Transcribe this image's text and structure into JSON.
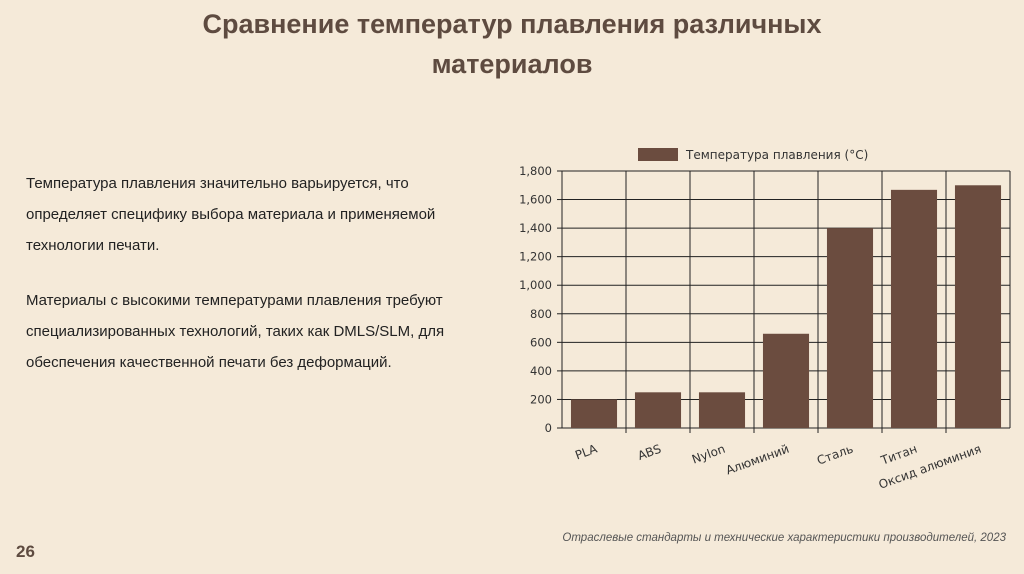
{
  "slide": {
    "title_line1": "Сравнение температур плавления различных",
    "title_line2": "материалов",
    "paragraph1": "Температура плавления значительно варьируется, что определяет специфику выбора материала и применяемой технологии печати.",
    "paragraph2": "Материалы с высокими температурами плавления требуют специализированных технологий, таких как DMLS/SLM, для обеспечения качественной печати без деформаций.",
    "source": "Отраслевые стандарты и технические характеристики производителей, 2023",
    "page_number": "26"
  },
  "colors": {
    "bar": "#6b4c3f",
    "title": "#5e4b40",
    "background": "#f5ead9"
  },
  "chart_data": {
    "type": "bar",
    "title": "",
    "xlabel": "",
    "ylabel": "",
    "categories": [
      "PLA",
      "ABS",
      "Nylon",
      "Алюминий",
      "Сталь",
      "Титан",
      "Оксид алюминия"
    ],
    "series": [
      {
        "name": "Температура плавления (°C)",
        "values": [
          200,
          250,
          250,
          660,
          1400,
          1668,
          1700
        ]
      }
    ],
    "ylim": [
      0,
      1800
    ],
    "yticks": [
      0,
      200,
      400,
      600,
      800,
      1000,
      1200,
      1400,
      1600,
      1800
    ],
    "ytick_labels": [
      "0",
      "200",
      "400",
      "600",
      "800",
      "1,000",
      "1,200",
      "1,400",
      "1,600",
      "1,800"
    ],
    "grid": true,
    "legend": "top"
  }
}
